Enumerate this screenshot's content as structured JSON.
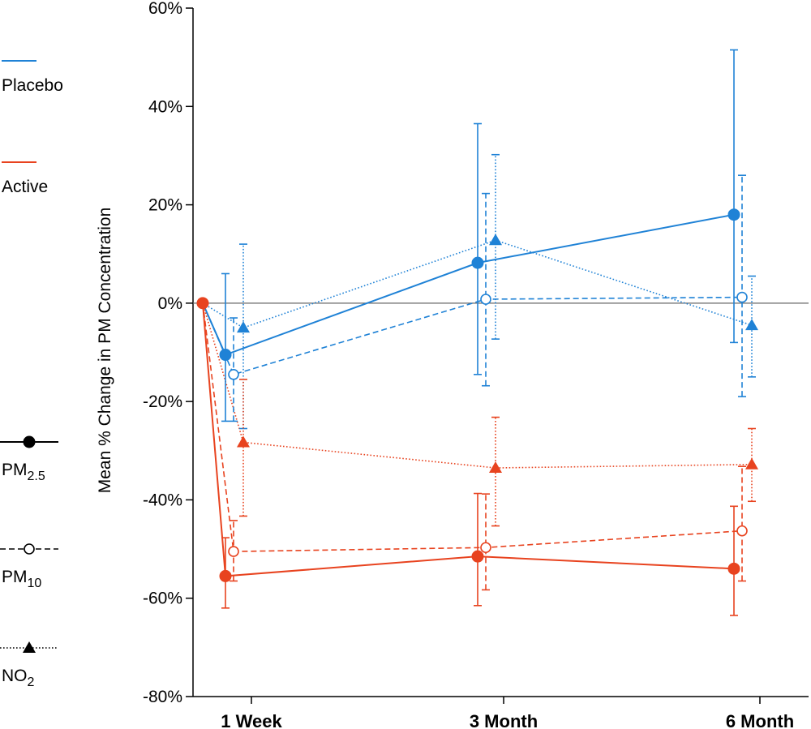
{
  "chart_data": {
    "type": "line",
    "title": "",
    "xlabel": "",
    "ylabel": "Mean % Change in PM Concentration",
    "y_unit_suffix": "%",
    "ylim": [
      -80,
      60
    ],
    "yticks": [
      60,
      40,
      20,
      0,
      -20,
      -40,
      -60,
      -80
    ],
    "categories": [
      "1 Week",
      "3 Month",
      "6 Month"
    ],
    "baseline_value": 0,
    "colors": {
      "Placebo": "#1f82d6",
      "Active": "#e8431f",
      "reference_line": "#666666"
    },
    "groups": [
      {
        "name": "Placebo",
        "color": "#1f82d6"
      },
      {
        "name": "Active",
        "color": "#e8431f"
      }
    ],
    "pollutants": [
      {
        "name": "PM",
        "subscript": "2.5",
        "line": "solid",
        "marker": "filled-circle"
      },
      {
        "name": "PM",
        "subscript": "10",
        "line": "dashed",
        "marker": "open-circle"
      },
      {
        "name": "NO",
        "subscript": "2",
        "line": "dotted",
        "marker": "filled-triangle"
      }
    ],
    "series": [
      {
        "group": "Placebo",
        "pollutant": "PM2.5",
        "line": "solid",
        "marker": "filled-circle",
        "values": [
          -10.5,
          8.2,
          18
        ],
        "err_low": [
          -24,
          -14.5,
          -8
        ],
        "err_high": [
          6,
          36.5,
          51.5
        ]
      },
      {
        "group": "Placebo",
        "pollutant": "PM10",
        "line": "dashed",
        "marker": "open-circle",
        "values": [
          -14.5,
          0.8,
          1.2
        ],
        "err_low": [
          -24,
          -16.8,
          -19
        ],
        "err_high": [
          -3,
          22.3,
          26
        ]
      },
      {
        "group": "Placebo",
        "pollutant": "NO2",
        "line": "dotted",
        "marker": "filled-triangle",
        "values": [
          -5,
          12.8,
          -4.5
        ],
        "err_low": [
          -25.5,
          -7.3,
          -15
        ],
        "err_high": [
          12,
          30.2,
          5.5
        ]
      },
      {
        "group": "Active",
        "pollutant": "PM2.5",
        "line": "solid",
        "marker": "filled-circle",
        "values": [
          -55.5,
          -51.5,
          -54
        ],
        "err_low": [
          -62,
          -61.5,
          -63.5
        ],
        "err_high": [
          -47.7,
          -38.7,
          -41.3
        ]
      },
      {
        "group": "Active",
        "pollutant": "PM10",
        "line": "dashed",
        "marker": "open-circle",
        "values": [
          -50.5,
          -49.7,
          -46.3
        ],
        "err_low": [
          -56.5,
          -58.3,
          -56.5
        ],
        "err_high": [
          -44.2,
          -38.8,
          -33.2
        ]
      },
      {
        "group": "Active",
        "pollutant": "NO2",
        "line": "dotted",
        "marker": "filled-triangle",
        "values": [
          -28.3,
          -33.5,
          -32.8
        ],
        "err_low": [
          -43.3,
          -45.3,
          -40.3
        ],
        "err_high": [
          -15.5,
          -23.2,
          -25.5
        ]
      }
    ]
  }
}
